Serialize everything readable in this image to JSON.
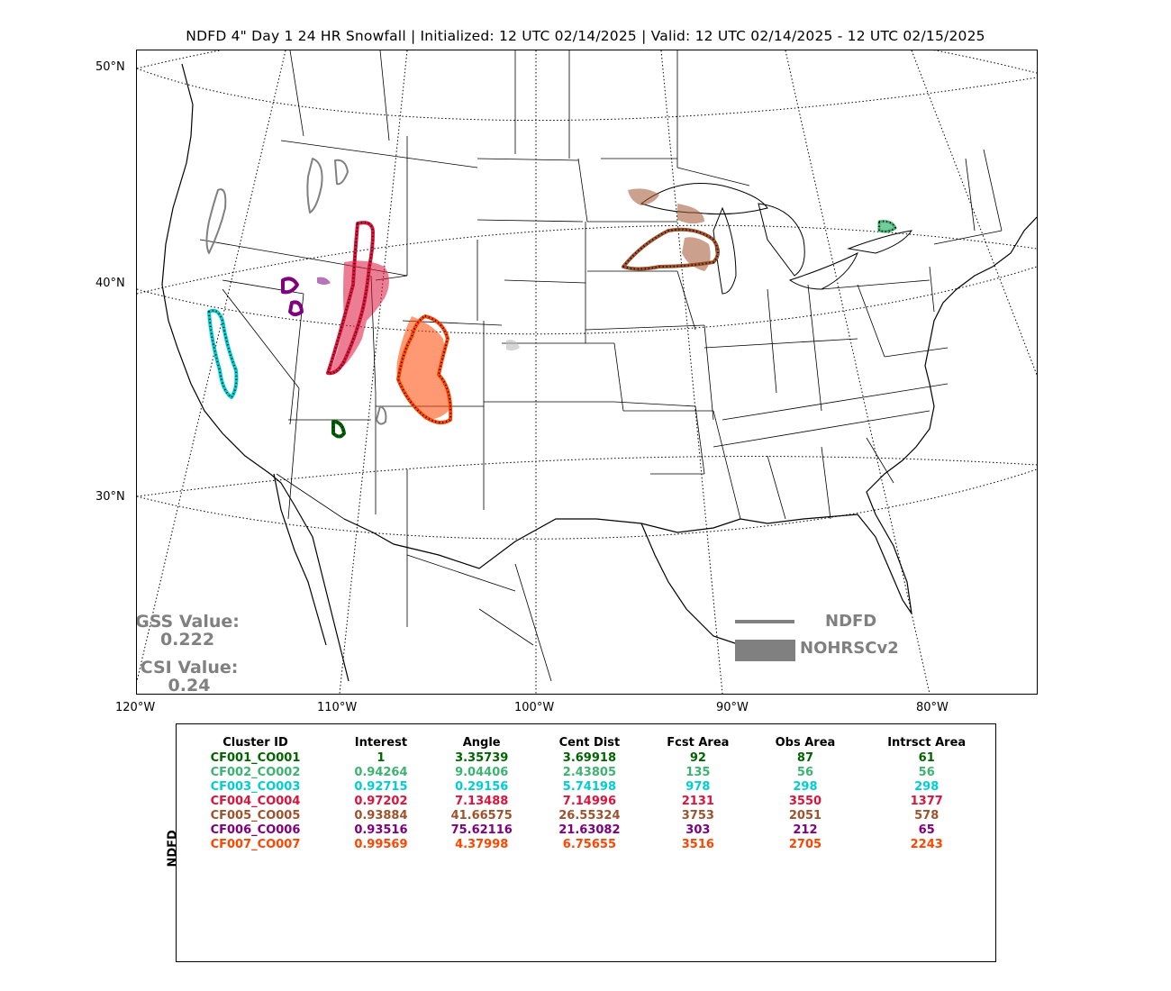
{
  "title": "NDFD 4\" Day 1 24 HR Snowfall | Initialized: 12 UTC 02/14/2025 | Valid: 12 UTC 02/14/2025 - 12 UTC 02/15/2025",
  "lat_labels": [
    "50°N",
    "40°N",
    "30°N"
  ],
  "lon_labels": [
    "120°W",
    "110°W",
    "100°W",
    "90°W",
    "80°W"
  ],
  "stats": {
    "gss_label": "GSS Value:",
    "gss_value": "0.222",
    "csi_label": "CSI Value:",
    "csi_value": "0.24"
  },
  "legend": {
    "forecast_label": "NDFD",
    "observed_label": "NOHRSCv2",
    "color": "#808080"
  },
  "table": {
    "side_label": "NDFD",
    "headers": [
      "Cluster ID",
      "Interest",
      "Angle",
      "Cent Dist",
      "Fcst Area",
      "Obs Area",
      "Intrsct Area"
    ],
    "rows": [
      {
        "color": "#006400",
        "cells": [
          "CF001_CO001",
          "1",
          "3.35739",
          "3.69918",
          "92",
          "87",
          "61"
        ]
      },
      {
        "color": "#3cb371",
        "cells": [
          "CF002_CO002",
          "0.94264",
          "9.04406",
          "2.43805",
          "135",
          "56",
          "56"
        ]
      },
      {
        "color": "#00ced1",
        "cells": [
          "CF003_CO003",
          "0.92715",
          "0.29156",
          "5.74198",
          "978",
          "298",
          "298"
        ]
      },
      {
        "color": "#dc143c",
        "cells": [
          "CF004_CO004",
          "0.97202",
          "7.13488",
          "7.14996",
          "2131",
          "3550",
          "1377"
        ]
      },
      {
        "color": "#a0522d",
        "cells": [
          "CF005_CO005",
          "0.93884",
          "41.66575",
          "26.55324",
          "3753",
          "2051",
          "578"
        ]
      },
      {
        "color": "#800080",
        "cells": [
          "CF006_CO006",
          "0.93516",
          "75.62116",
          "21.63082",
          "303",
          "212",
          "65"
        ]
      },
      {
        "color": "#ff4500",
        "cells": [
          "CF007_CO007",
          "0.99569",
          "4.37998",
          "6.75655",
          "3516",
          "2705",
          "2243"
        ]
      }
    ]
  }
}
